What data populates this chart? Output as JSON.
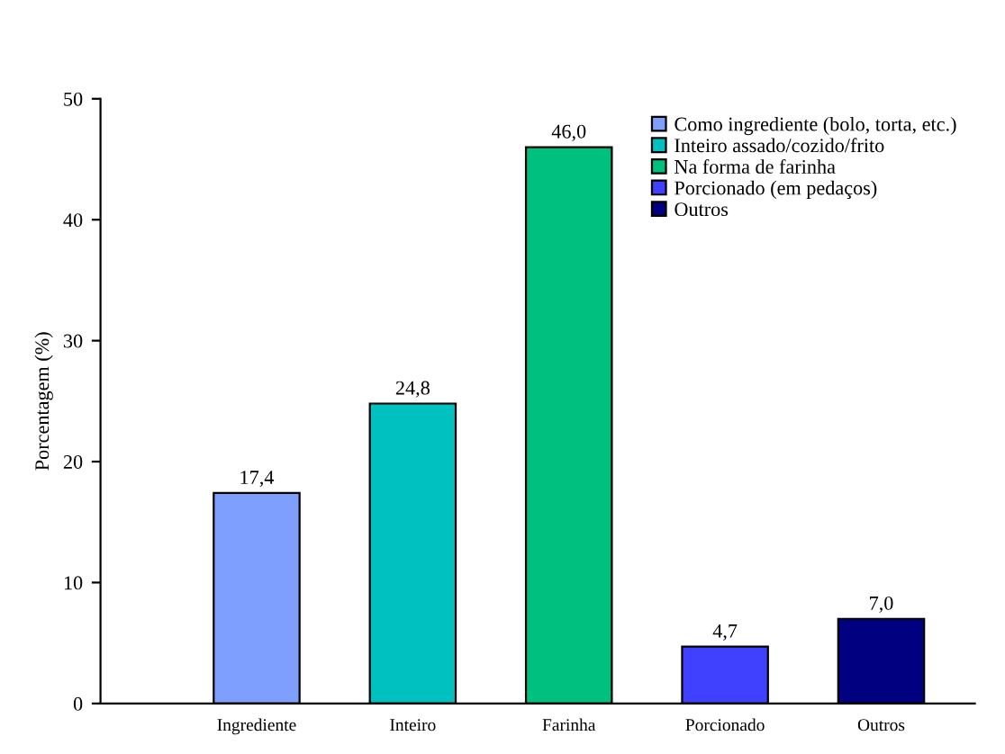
{
  "chart_data": {
    "type": "bar",
    "ylabel": "Porcentagem (%)",
    "categories": [
      "Ingrediente",
      "Inteiro",
      "Farinha",
      "Porcionado",
      "Outros"
    ],
    "series": [
      {
        "name": "Como ingrediente (bolo, torta, etc.)",
        "color": "#7f9fff",
        "values": [
          17.4,
          null,
          null,
          null,
          null
        ]
      },
      {
        "name": "Inteiro assado/cozido/frito",
        "color": "#00c0c0",
        "values": [
          null,
          24.8,
          null,
          null,
          null
        ]
      },
      {
        "name": "Na forma de farinha",
        "color": "#00c080",
        "values": [
          null,
          null,
          46.0,
          null,
          null
        ]
      },
      {
        "name": "Porcionado (em pedaços)",
        "color": "#4040ff",
        "values": [
          null,
          null,
          null,
          4.7,
          null
        ]
      },
      {
        "name": "Outros",
        "color": "#000080",
        "values": [
          null,
          null,
          null,
          null,
          7.0
        ]
      }
    ],
    "value_labels": [
      "17,4",
      "24,8",
      "46,0",
      "4,7",
      "7,0"
    ],
    "ylim": [
      0,
      50
    ],
    "yticks": [
      0,
      10,
      20,
      30,
      40,
      50
    ],
    "grid": false,
    "legend": "top right"
  }
}
